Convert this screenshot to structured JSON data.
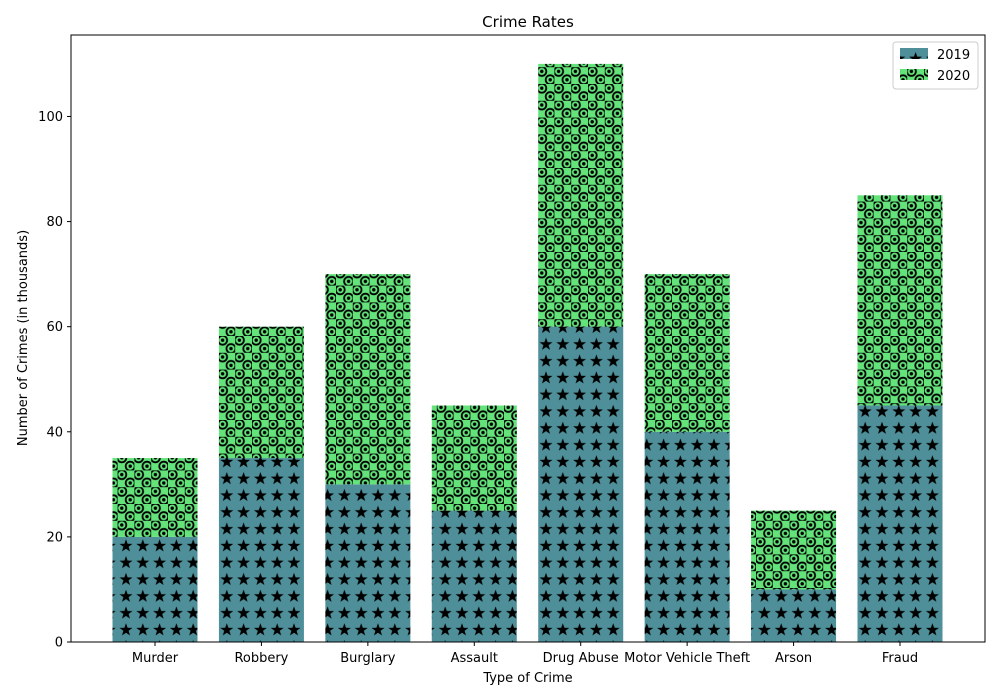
{
  "chart_data": {
    "type": "bar",
    "stacked": true,
    "title": "Crime Rates",
    "xlabel": "Type of Crime",
    "ylabel": "Number of Crimes (in thousands)",
    "categories": [
      "Murder",
      "Robbery",
      "Burglary",
      "Assault",
      "Drug Abuse",
      "Motor Vehicle Theft",
      "Arson",
      "Fraud"
    ],
    "series": [
      {
        "name": "2019",
        "values": [
          20,
          35,
          30,
          25,
          60,
          40,
          10,
          45
        ],
        "color": "#4e8f99",
        "hatch": "stars"
      },
      {
        "name": "2020",
        "values": [
          15,
          25,
          40,
          20,
          50,
          30,
          15,
          40
        ],
        "color": "#63e37a",
        "hatch": "rings"
      }
    ],
    "ylim": [
      0,
      115.5
    ],
    "yticks": [
      0,
      20,
      40,
      60,
      80,
      100
    ],
    "grid": false,
    "legend": "top-right"
  }
}
